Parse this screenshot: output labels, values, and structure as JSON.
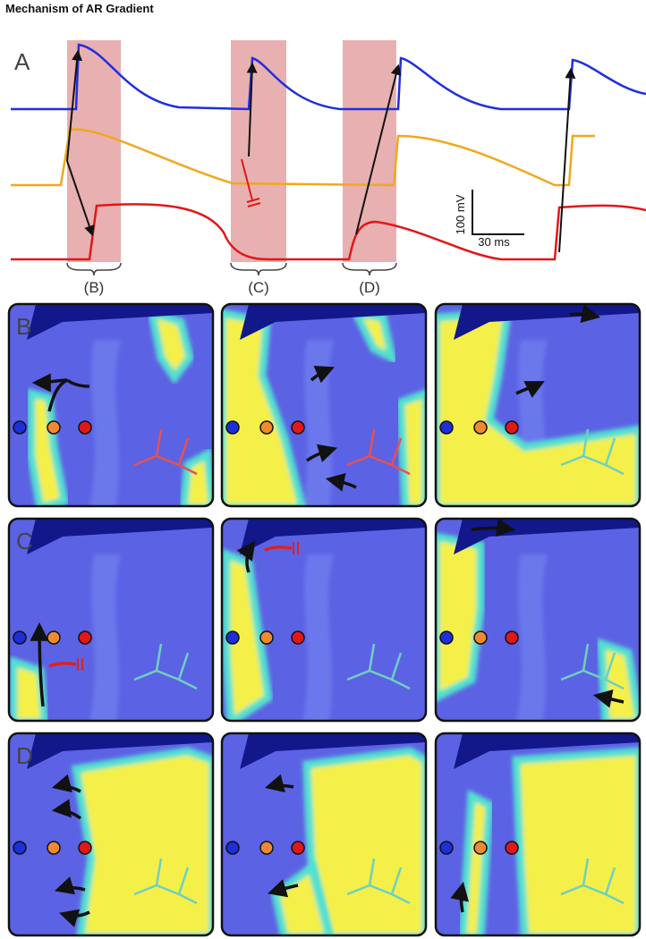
{
  "title": "Mechanism of AR Gradient",
  "panel_a": {
    "label": "A",
    "windows": [
      "(B)",
      "(C)",
      "(D)"
    ],
    "scale_bar": {
      "voltage": "100 mV",
      "time": "30 ms"
    }
  },
  "rows": [
    {
      "label": "B"
    },
    {
      "label": "C"
    },
    {
      "label": "D"
    }
  ]
}
